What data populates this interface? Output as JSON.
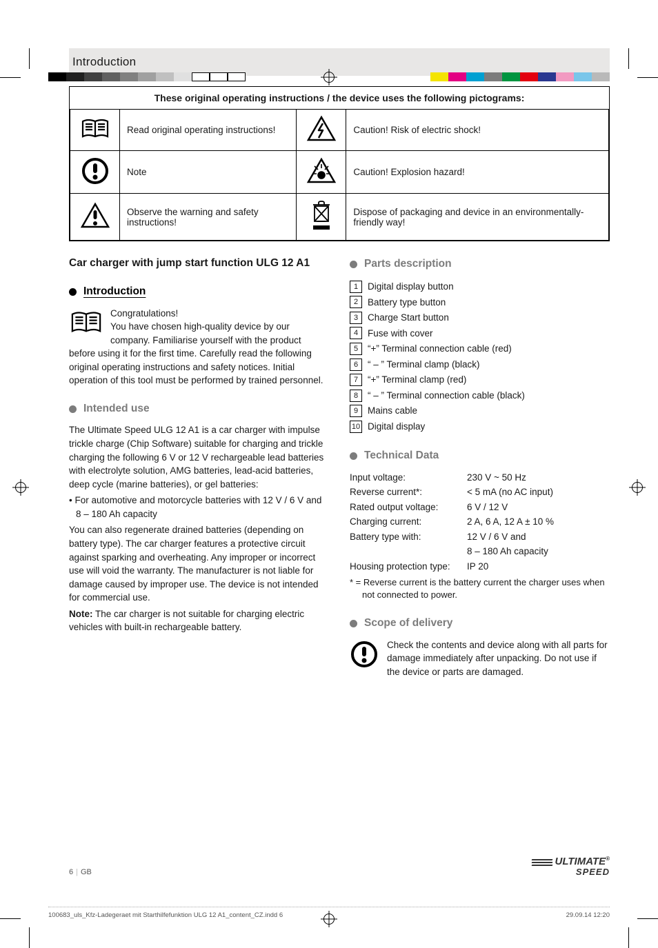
{
  "colorbar_left": [
    "#000000",
    "#202020",
    "#404040",
    "#606060",
    "#808080",
    "#a0a0a0",
    "#c0c0c0",
    "#e0e0e0",
    "#ffffff",
    "#ffffff",
    "#ffffff"
  ],
  "colorbar_right": [
    "#f4e400",
    "#e30083",
    "#00a0d2",
    "#7c7c7c",
    "#009540",
    "#e3000f",
    "#2a3890",
    "#f29ac1",
    "#79c6ea",
    "#b9b9b9"
  ],
  "header": {
    "title": "Introduction"
  },
  "pictograms": {
    "tableTitle": "These original operating instructions / the device uses the following pictograms:",
    "rows": [
      {
        "leftLabel": "Read original operating instructions!",
        "rightLabel": "Caution! Risk of electric shock!"
      },
      {
        "leftLabel": "Note",
        "rightLabel": "Caution! Explosion hazard!"
      },
      {
        "leftLabel": "Observe the warning and safety instructions!",
        "rightLabel": "Dispose of packaging and device in an environmentally-friendly way!"
      }
    ]
  },
  "leftCol": {
    "productTitle": "Car charger with jump start function ULG 12 A1",
    "sec1Title": "Introduction",
    "sec1Lead": "Congratulations!",
    "sec1Body": "You have chosen high-quality device by our company. Familiarise yourself with the product before using it for the first time. Carefully read the following original operating instructions and safety notices. Initial operation of this tool must be performed by trained personnel.",
    "sec2Title": "Intended use",
    "sec2P1": "The Ultimate Speed ULG 12 A1 is a car charger with impulse trickle charge (Chip Software) suitable for charging and trickle charging the following 6 V or 12 V rechargeable lead batteries with electrolyte solution, AMG batteries, lead-acid batteries, deep cycle (marine batteries), or gel batteries:",
    "sec2Bullet": "For automotive and motorcycle batteries with 12 V / 6 V and 8 – 180 Ah capacity",
    "sec2P2": "You can also regenerate drained batteries (depending on battery type). The car charger features a protective circuit against sparking and overheating. Any improper or incorrect use will void the warranty. The manufacturer is not liable for damage caused by improper use. The device is not intended for commercial use.",
    "sec2NoteLabel": "Note:",
    "sec2Note": " The car charger is not suitable for charging electric vehicles with built-in rechargeable battery."
  },
  "rightCol": {
    "sec3Title": "Parts description",
    "parts": [
      "Digital display button",
      "Battery type button",
      "Charge Start button",
      "Fuse with cover",
      "“+” Terminal connection cable (red)",
      "“ – ” Terminal clamp (black)",
      "“+” Terminal clamp (red)",
      "“ – ” Terminal connection cable (black)",
      "Mains cable",
      "Digital display"
    ],
    "sec4Title": "Technical Data",
    "tech": [
      [
        "Input voltage:",
        "230 V ~ 50 Hz"
      ],
      [
        "Reverse current*:",
        "< 5 mA (no AC input)"
      ],
      [
        "Rated output voltage:",
        "6 V / 12 V"
      ],
      [
        "Charging current:",
        "2 A, 6 A, 12 A ± 10 %"
      ],
      [
        "Battery type with:",
        "12 V / 6 V and"
      ],
      [
        "",
        "8 – 180 Ah capacity"
      ],
      [
        "Housing protection type:",
        "IP 20"
      ]
    ],
    "techFoot": "* = Reverse current is the battery current the charger uses when not connected to power.",
    "sec5Title": "Scope of delivery",
    "sec5Body": "Check the contents and device along with all parts for damage immediately after unpacking. Do not use if the device or parts are damaged."
  },
  "footer": {
    "pageNum": "6",
    "lang": "GB",
    "logoTop": "ULTIMATE",
    "logoBottom": "SPEED",
    "slugFile": "100683_uls_Kfz-Ladegeraet mit Starthilfefunktion ULG 12 A1_content_CZ.indd   6",
    "slugDate": "29.09.14   12:20"
  }
}
